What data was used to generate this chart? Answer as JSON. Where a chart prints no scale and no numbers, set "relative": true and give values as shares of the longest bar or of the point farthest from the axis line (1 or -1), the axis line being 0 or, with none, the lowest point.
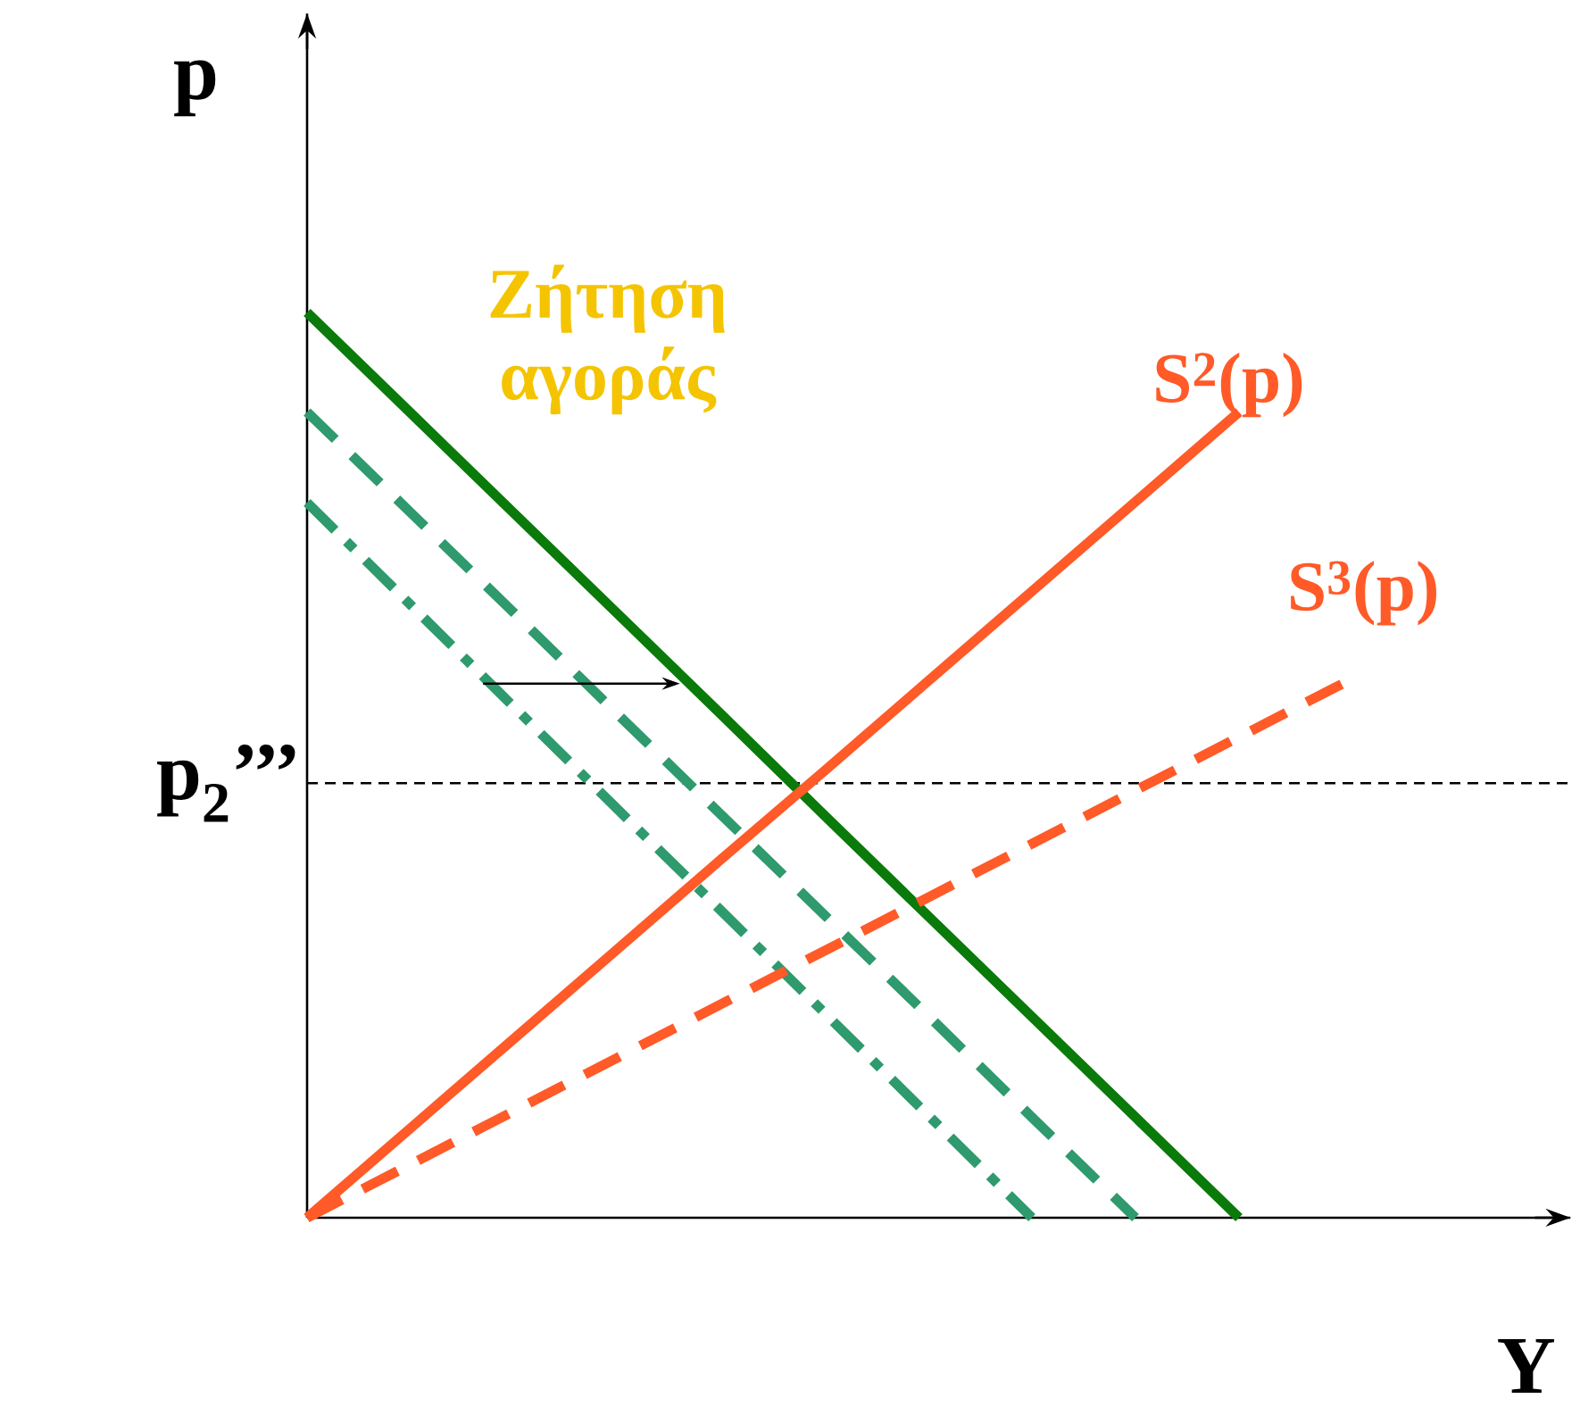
{
  "chart_data": {
    "type": "line",
    "relative": true,
    "xlabel": "Y",
    "ylabel": "p",
    "tick_labels": false,
    "categories": [
      null,
      null,
      null,
      null,
      null,
      null,
      null,
      null,
      null,
      null,
      null
    ],
    "series": [
      {
        "name": "Ζήτηση αγοράς",
        "color": "#0a7a0a",
        "values": [
          1,
          0.889,
          0.778,
          0.667,
          0.556,
          0.444,
          0.333,
          0.222,
          0.111,
          0,
          null
        ],
        "line_style": "solid"
      },
      {
        "color": "#2e9a6e",
        "values": [
          0.89,
          0.779,
          0.668,
          0.556,
          0.445,
          0.334,
          0.223,
          0.111,
          0,
          null,
          null
        ],
        "line_style": "dashed"
      },
      {
        "color": "#2e9a6e",
        "values": [
          0.79,
          0.677,
          0.564,
          0.451,
          0.339,
          0.226,
          0.113,
          0,
          null,
          null,
          null
        ],
        "line_style": "dashdot"
      },
      {
        "name": "S$^{2}$(p)",
        "color": "#ff5a28",
        "values": [
          0,
          0.099,
          0.198,
          0.297,
          0.396,
          0.494,
          0.593,
          0.692,
          0.791,
          0.89,
          null
        ],
        "line_style": "solid"
      },
      {
        "name": "S$^{3}$(p)",
        "color": "#ff5a28",
        "values": [
          0,
          0.059,
          0.118,
          0.177,
          0.236,
          0.295,
          0.354,
          0.413,
          0.472,
          0.531,
          0.59
        ],
        "line_style": "dashed"
      }
    ],
    "ref_lines": [
      {
        "axis": "y",
        "value": 0.48,
        "label": "p$_{2}$’’’",
        "color": "#000000",
        "line_style": "dashed"
      }
    ]
  }
}
